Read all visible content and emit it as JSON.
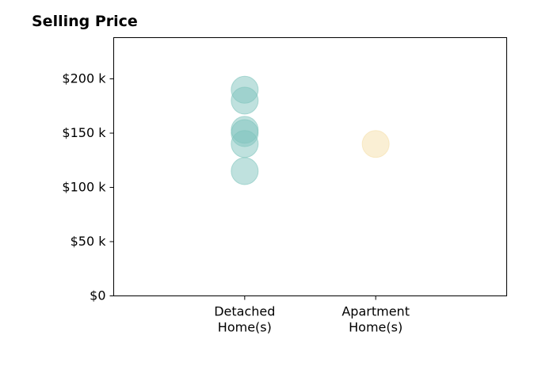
{
  "chart_data": {
    "type": "scatter",
    "title": "Selling Price",
    "xlabel": "",
    "ylabel": "",
    "categories": [
      "Detached\nHome(s)",
      "Apartment\nHome(s)"
    ],
    "yticks": [
      {
        "value": 0,
        "label": "$0"
      },
      {
        "value": 50000,
        "label": "$50 k"
      },
      {
        "value": 100000,
        "label": "$100 k"
      },
      {
        "value": 150000,
        "label": "$150 k"
      },
      {
        "value": 200000,
        "label": "$200 k"
      }
    ],
    "ylim": [
      0,
      238000
    ],
    "xlim": [
      0,
      3
    ],
    "grid": false,
    "series": [
      {
        "category_index": 0,
        "color": "#7fc4bd",
        "values": [
          190000,
          180000,
          153000,
          150000,
          140000,
          115000
        ]
      },
      {
        "category_index": 1,
        "color": "#f5dfaa",
        "values": [
          140000
        ]
      }
    ]
  }
}
